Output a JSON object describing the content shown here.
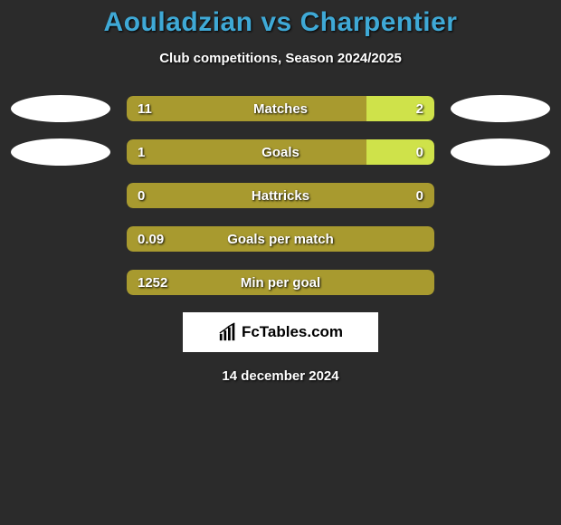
{
  "title": "Aouladzian vs Charpentier",
  "subtitle": "Club competitions, Season 2024/2025",
  "colors": {
    "left": "#a89a2f",
    "right": "#cfe24a",
    "background": "#2b2b2b",
    "title": "#3fa9d6",
    "text": "#ffffff"
  },
  "bars": [
    {
      "label": "Matches",
      "left_val": "11",
      "right_val": "2",
      "left_pct": 78,
      "right_pct": 22,
      "show_right": true,
      "show_ellipses": true
    },
    {
      "label": "Goals",
      "left_val": "1",
      "right_val": "0",
      "left_pct": 78,
      "right_pct": 22,
      "show_right": true,
      "show_ellipses": true
    },
    {
      "label": "Hattricks",
      "left_val": "0",
      "right_val": "0",
      "left_pct": 100,
      "right_pct": 0,
      "show_right": true,
      "show_ellipses": false
    },
    {
      "label": "Goals per match",
      "left_val": "0.09",
      "right_val": "",
      "left_pct": 100,
      "right_pct": 0,
      "show_right": false,
      "show_ellipses": false
    },
    {
      "label": "Min per goal",
      "left_val": "1252",
      "right_val": "",
      "left_pct": 100,
      "right_pct": 0,
      "show_right": false,
      "show_ellipses": false
    }
  ],
  "logo_text": "FcTables.com",
  "date": "14 december 2024"
}
